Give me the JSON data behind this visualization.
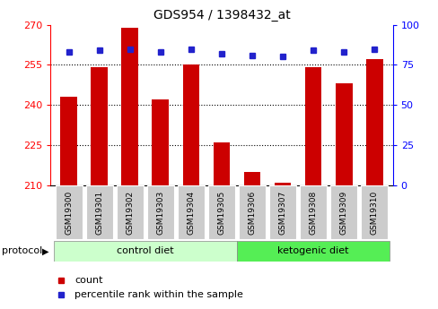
{
  "title": "GDS954 / 1398432_at",
  "samples": [
    "GSM19300",
    "GSM19301",
    "GSM19302",
    "GSM19303",
    "GSM19304",
    "GSM19305",
    "GSM19306",
    "GSM19307",
    "GSM19308",
    "GSM19309",
    "GSM19310"
  ],
  "count_values": [
    243,
    254,
    269,
    242,
    255,
    226,
    215,
    211,
    254,
    248,
    257
  ],
  "percentile_values": [
    83,
    84,
    85,
    83,
    85,
    82,
    81,
    80,
    84,
    83,
    85
  ],
  "ylim_left": [
    210,
    270
  ],
  "ylim_right": [
    0,
    100
  ],
  "yticks_left": [
    210,
    225,
    240,
    255,
    270
  ],
  "yticks_right": [
    0,
    25,
    50,
    75,
    100
  ],
  "bar_color": "#cc0000",
  "dot_color": "#2222cc",
  "grid_color": "#000000",
  "n_control": 6,
  "n_keto": 5,
  "control_label": "control diet",
  "ketogenic_label": "ketogenic diet",
  "protocol_label": "protocol",
  "legend_count": "count",
  "legend_percentile": "percentile rank within the sample",
  "control_color": "#ccffcc",
  "ketogenic_color": "#55ee55",
  "bar_width": 0.55,
  "title_fontsize": 10,
  "tick_fontsize": 8,
  "sample_fontsize": 6.5,
  "protocol_fontsize": 8,
  "legend_fontsize": 8
}
